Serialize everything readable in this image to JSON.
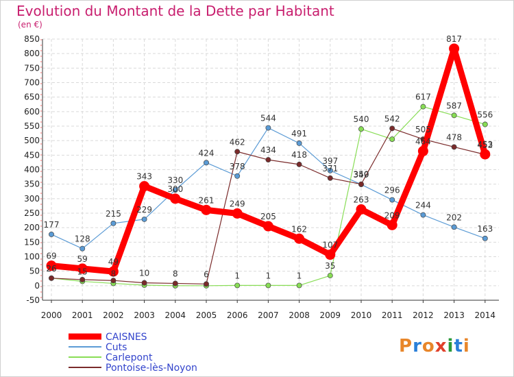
{
  "header": {
    "title": "Evolution du Montant de la Dette par Habitant",
    "unit": "(en €)"
  },
  "logo": {
    "text": "Proxiti",
    "letters": [
      "P",
      "r",
      "o",
      "x",
      "i",
      "t",
      "i"
    ],
    "colors": [
      "#e8862a",
      "#2a7fd8",
      "#e8862a",
      "#e0402a",
      "#2a9a3a",
      "#2a7fd8",
      "#e8862a"
    ]
  },
  "chart_data": {
    "type": "line",
    "title": "Evolution du Montant de la Dette par Habitant",
    "ylabel": "(en €)",
    "x": [
      "2000",
      "2001",
      "2002",
      "2003",
      "2004",
      "2005",
      "2006",
      "2007",
      "2008",
      "2009",
      "2010",
      "2011",
      "2012",
      "2013",
      "2014"
    ],
    "yticks": [
      "-50",
      "0",
      "50",
      "100",
      "150",
      "200",
      "250",
      "300",
      "350",
      "400",
      "450",
      "500",
      "550",
      "600",
      "650",
      "700",
      "750",
      "800",
      "850"
    ],
    "ylim": [
      -50,
      850
    ],
    "grid": true,
    "legend": "bottom-left",
    "series": [
      {
        "name": "CAISNES",
        "color": "#ff0000",
        "values": [
          69,
          59,
          49,
          343,
          300,
          261,
          249,
          205,
          162,
          107,
          263,
          209,
          464,
          817,
          453
        ],
        "labels": [
          "69",
          "59",
          "49",
          "343",
          "300",
          "261",
          "249",
          "205",
          "162",
          "107",
          "263",
          "209",
          "464",
          "817",
          "453"
        ]
      },
      {
        "name": "Cuts",
        "color": "#5b9bd5",
        "values": [
          177,
          128,
          215,
          229,
          330,
          424,
          378,
          544,
          491,
          397,
          349,
          296,
          244,
          202,
          163
        ],
        "labels": [
          "177",
          "128",
          "215",
          "229",
          "330",
          "424",
          "378",
          "544",
          "491",
          "397",
          "349",
          "296",
          "244",
          "202",
          "163"
        ]
      },
      {
        "name": "Carlepont",
        "color": "#88dd55",
        "values": [
          26,
          15,
          8,
          2,
          0,
          0,
          1,
          1,
          1,
          35,
          540,
          505,
          617,
          587,
          556
        ],
        "labels": [
          "26",
          "15",
          "8",
          "",
          "",
          "",
          "1",
          "1",
          "1",
          "35",
          "540",
          "",
          "617",
          "587",
          "556"
        ]
      },
      {
        "name": "Pontoise-lès-Noyon",
        "color": "#7a2a2a",
        "values": [
          26,
          21,
          18,
          10,
          8,
          6,
          462,
          434,
          418,
          371,
          350,
          542,
          505,
          478,
          452
        ],
        "labels": [
          "26",
          "",
          "",
          "10",
          "8",
          "6",
          "462",
          "434",
          "418",
          "371",
          "350",
          "542",
          "505",
          "478",
          "452"
        ]
      }
    ]
  }
}
